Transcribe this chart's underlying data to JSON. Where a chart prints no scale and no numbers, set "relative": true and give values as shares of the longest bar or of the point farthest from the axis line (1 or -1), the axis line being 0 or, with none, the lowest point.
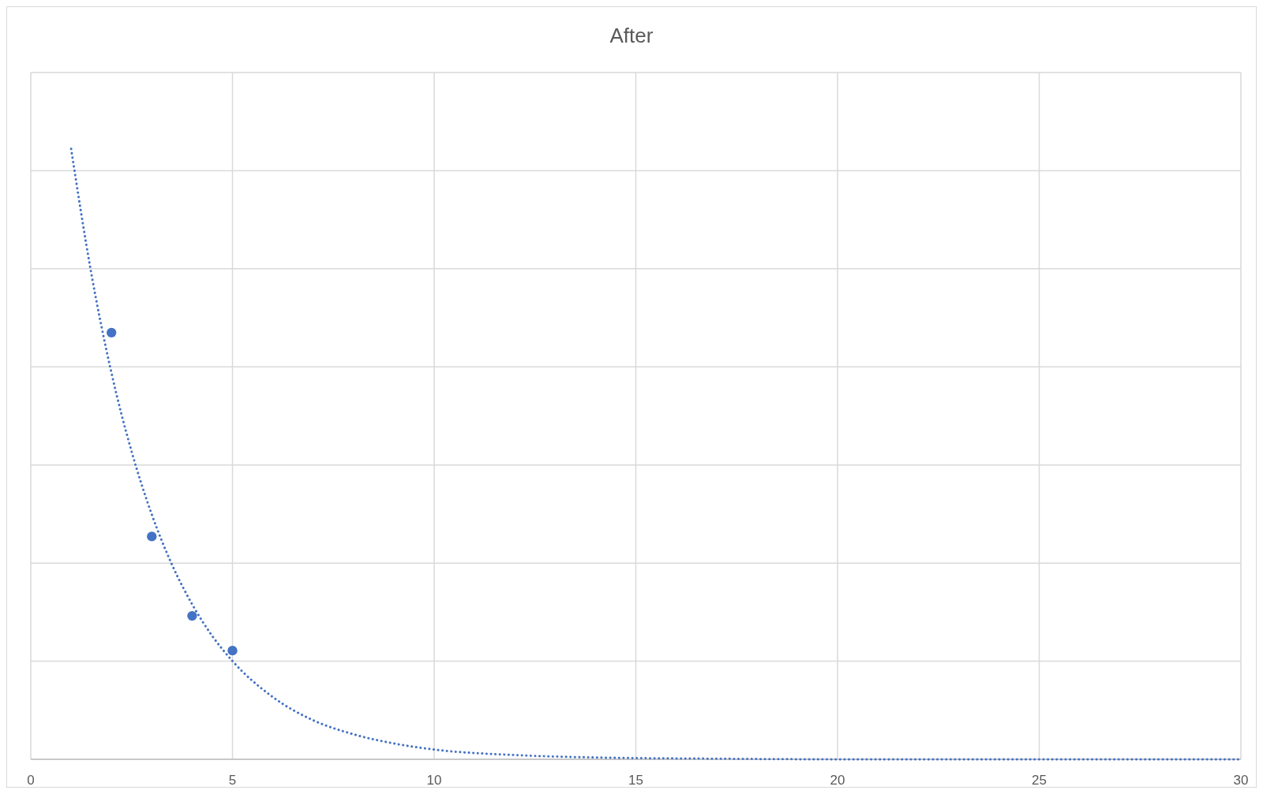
{
  "chart_data": {
    "type": "scatter",
    "title": "After",
    "relative": true,
    "xlim": [
      0,
      30
    ],
    "xticks": [
      0,
      5,
      10,
      15,
      20,
      25,
      30
    ],
    "grid": true,
    "tick_labels": "x",
    "series": [
      {
        "color": "#4472c4",
        "marker": "circle",
        "x": [
          2,
          3,
          4,
          5
        ],
        "values": [
          0.699,
          0.365,
          0.235,
          0.178
        ]
      },
      {
        "type": "line",
        "color": "#4472c4",
        "line_style": "dotted",
        "marker": "none",
        "x": [
          1,
          1.5,
          2,
          2.5,
          3,
          3.5,
          4,
          4.5,
          5,
          6,
          7,
          8,
          9,
          10,
          12,
          14,
          17,
          20,
          25,
          30
        ],
        "values": [
          1,
          0.796,
          0.633,
          0.504,
          0.401,
          0.319,
          0.254,
          0.202,
          0.161,
          0.102,
          0.064,
          0.041,
          0.026,
          0.016,
          0.007,
          0.003,
          0.001,
          0,
          0,
          0
        ]
      }
    ]
  }
}
